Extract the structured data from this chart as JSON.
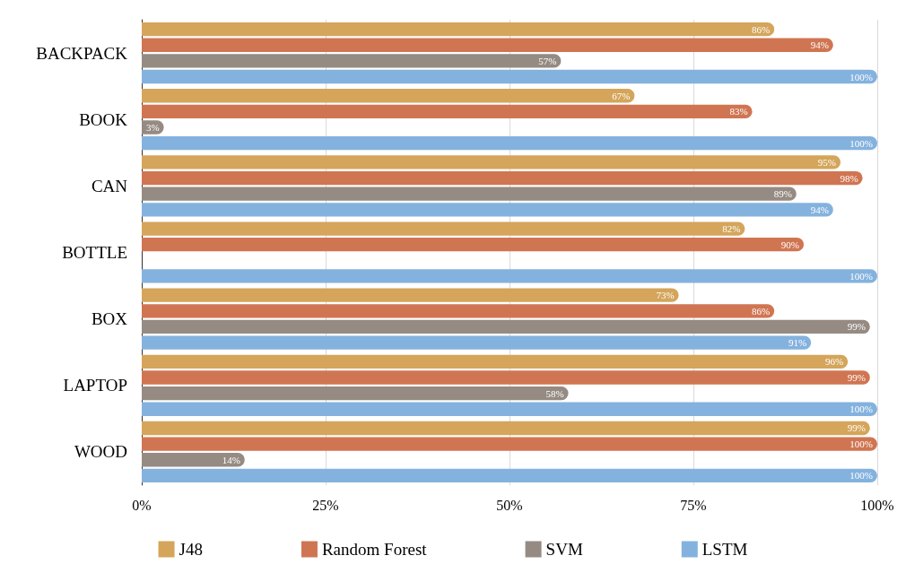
{
  "chart_data": {
    "type": "bar",
    "orientation": "horizontal",
    "categories": [
      "BACKPACK",
      "BOOK",
      "CAN",
      "BOTTLE",
      "BOX",
      "LAPTOP",
      "WOOD"
    ],
    "series": [
      {
        "name": "J48",
        "color": "#d4a55a",
        "values": [
          86,
          67,
          95,
          82,
          73,
          96,
          99
        ],
        "value_labels": [
          "86%",
          "67%",
          "95%",
          "82%",
          "73%",
          "96%",
          "99%"
        ]
      },
      {
        "name": "Random Forest",
        "color": "#d07552",
        "values": [
          94,
          83,
          98,
          90,
          86,
          99,
          100
        ],
        "value_labels": [
          "94%",
          "83%",
          "98%",
          "90%",
          "86%",
          "99%",
          "100%"
        ]
      },
      {
        "name": "SVM",
        "color": "#958b82",
        "values": [
          57,
          3,
          89,
          null,
          99,
          58,
          14
        ],
        "value_labels": [
          "57%",
          "3%",
          "89%",
          null,
          "99%",
          "58%",
          "14%"
        ]
      },
      {
        "name": "LSTM",
        "color": "#84b2de",
        "values": [
          100,
          100,
          94,
          100,
          91,
          100,
          100
        ],
        "value_labels": [
          "100%",
          "100%",
          "94%",
          "100%",
          "91%",
          "100%",
          "100%"
        ]
      }
    ],
    "xlim": [
      0,
      100
    ],
    "xticks": [
      {
        "value": 0,
        "label": "0%"
      },
      {
        "value": 25,
        "label": "25%"
      },
      {
        "value": 50,
        "label": "50%"
      },
      {
        "value": 75,
        "label": "75%"
      },
      {
        "value": 100,
        "label": "100%"
      }
    ],
    "grid": "x",
    "legend": "bottom"
  }
}
